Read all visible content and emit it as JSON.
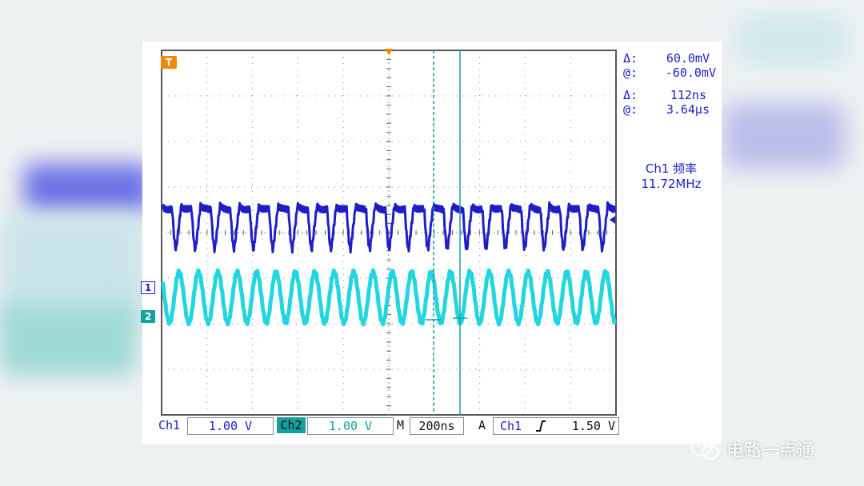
{
  "cursor_readouts": {
    "voltage_delta_symbol": "Δ:",
    "voltage_delta": "60.0mV",
    "voltage_at_symbol": "@:",
    "voltage_at": "-60.0mV",
    "time_delta_symbol": "Δ:",
    "time_delta": "112ns",
    "time_at_symbol": "@:",
    "time_at": "3.64µs"
  },
  "measurement": {
    "label": "Ch1 频率",
    "value": "11.72MHz"
  },
  "status_bar": {
    "ch1_label": "Ch1",
    "ch1_scale": "1.00 V",
    "ch2_label": "Ch2",
    "ch2_scale": "1.00 V",
    "timebase_label": "M",
    "timebase": "200ns",
    "trigger_label": "A",
    "trigger_source": "Ch1",
    "trigger_slope_icon": "rising-edge-icon",
    "trigger_level": "1.50 V"
  },
  "markers": {
    "trigger_position": "T",
    "ch1_marker": "1",
    "ch2_marker": "2"
  },
  "watermark": {
    "icon": "wechat-icon",
    "text": "电路一点通"
  },
  "colors": {
    "ch1": "#1e1ec8",
    "ch2": "#22d6e0",
    "trigger": "#f08a00",
    "grid": "#8c8c8c"
  }
}
